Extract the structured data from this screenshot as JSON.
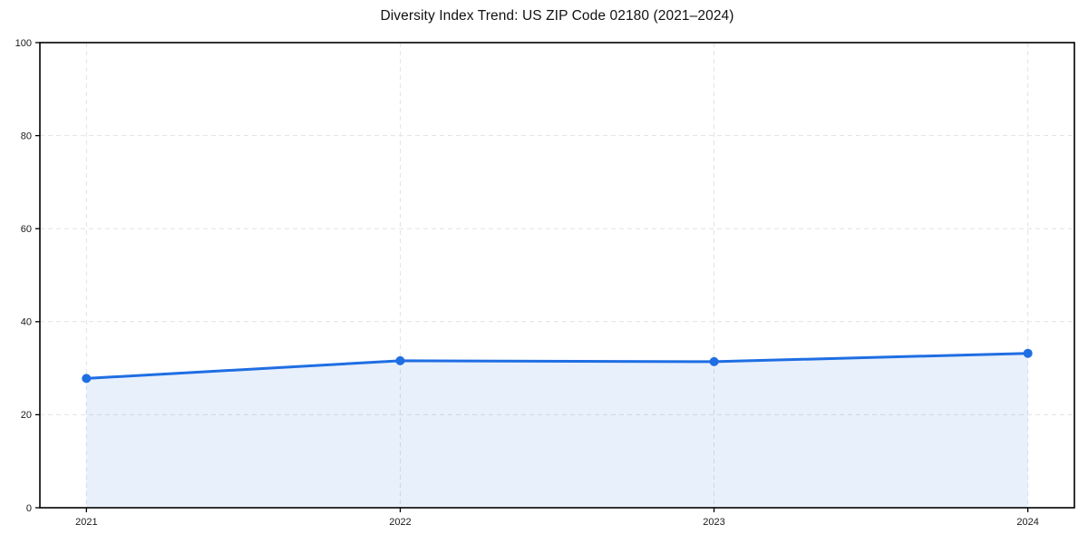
{
  "figure": {
    "background": "#ffffff"
  },
  "chart_data": {
    "type": "line",
    "title": "Diversity Index Trend: US ZIP Code 02180 (2021–2024)",
    "categories": [
      "2021",
      "2022",
      "2023",
      "2024"
    ],
    "series": [
      {
        "name": "Diversity Index",
        "values": [
          27.8,
          31.6,
          31.4,
          33.2
        ]
      }
    ],
    "xlabel": "",
    "ylabel": "",
    "ylim": [
      0,
      100
    ],
    "yticks": [
      0,
      20,
      40,
      60,
      80,
      100
    ],
    "grid": "dashed-both-axes",
    "legend": "none",
    "area_fill": true,
    "marker": "circle",
    "colors": {
      "line": "#1f6ee3",
      "area_fill_opacity": "0.1",
      "grid": "#e2e2e2",
      "axis": "#000000",
      "tick_text": "#1a1a1a"
    }
  }
}
